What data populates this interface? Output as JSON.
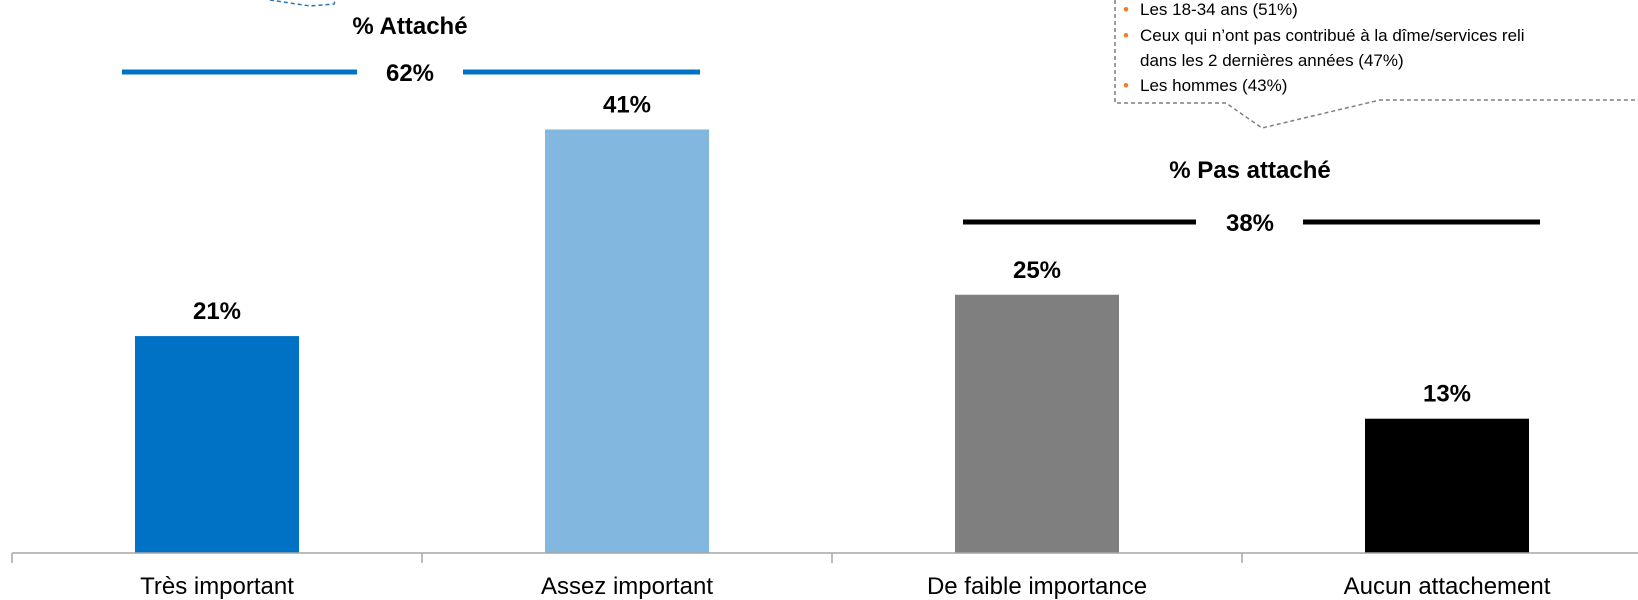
{
  "chart_data": {
    "type": "bar",
    "categories": [
      "Très important",
      "Assez important",
      "De faible importance",
      "Aucun attachement"
    ],
    "values": [
      21,
      41,
      25,
      13
    ],
    "value_labels": [
      "21%",
      "41%",
      "25%",
      "13%"
    ],
    "colors": [
      "#0072c6",
      "#82b8e0",
      "#7f7f7f",
      "#000000"
    ],
    "ylim": [
      0,
      45
    ],
    "grid": false,
    "legend": "none",
    "groups": [
      {
        "title": "% Attaché",
        "value_label": "62%",
        "color": "#0072c6",
        "categories": [
          0,
          1
        ]
      },
      {
        "title": "% Pas attaché",
        "value_label": "38%",
        "color": "#000000",
        "categories": [
          2,
          3
        ]
      }
    ]
  },
  "callout_left": {
    "color": "#2e75b6"
  },
  "callout_right": {
    "bullets": [
      "Les 18-34 ans (51%)",
      "Ceux qui n’ont pas contribué à la dîme/services reli",
      "Les hommes (43%)"
    ],
    "continuation": "dans les 2 dernières années (47%)",
    "bullet_color": "#ed7d31",
    "border_color": "#7f7f7f"
  }
}
